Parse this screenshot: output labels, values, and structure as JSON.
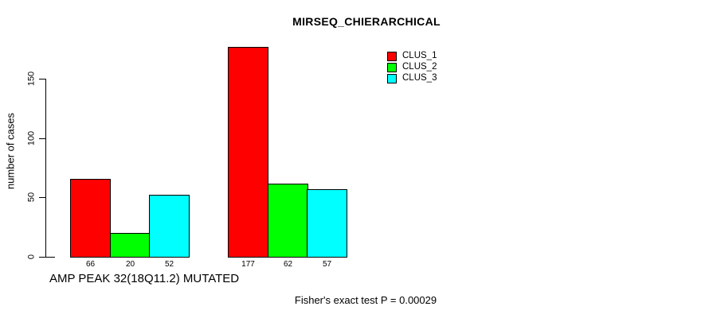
{
  "chart_data": {
    "type": "bar",
    "title": "MIRSEQ_CHIERARCHICAL",
    "ylabel": "number of cases",
    "xlabel": "",
    "yticks": [
      0,
      50,
      100,
      150
    ],
    "ylim": [
      0,
      177
    ],
    "grid": false,
    "legend_position": "top-right",
    "groups": [
      {
        "label": "AMP PEAK 32(18Q11.2) MUTATED",
        "values": [
          66,
          20,
          52
        ]
      },
      {
        "label": "",
        "values": [
          177,
          62,
          57
        ]
      }
    ],
    "series": [
      {
        "name": "CLUS_1",
        "color": "#ff0000"
      },
      {
        "name": "CLUS_2",
        "color": "#00ff00"
      },
      {
        "name": "CLUS_3",
        "color": "#00ffff"
      }
    ],
    "bar_value_labels": [
      "66",
      "20",
      "52",
      "177",
      "62",
      "57"
    ],
    "annotation": "Fisher's exact test P = 0.00029"
  },
  "colors": {
    "background": "#ffffff",
    "axis": "#000000",
    "text": "#000000"
  }
}
